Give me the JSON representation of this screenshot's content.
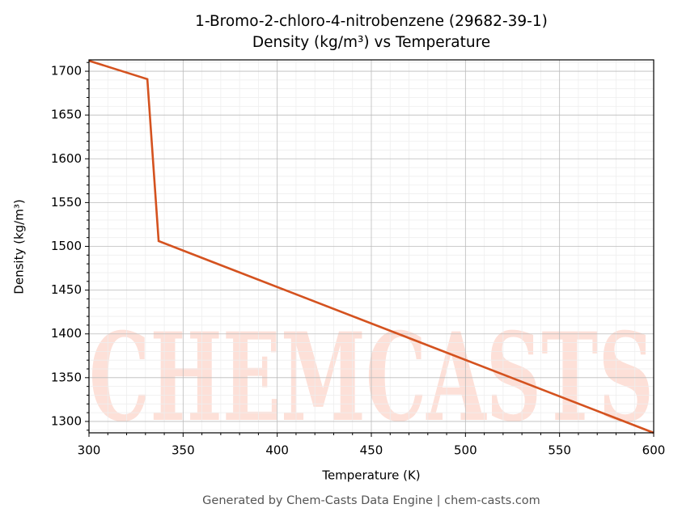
{
  "chart_data": {
    "type": "line",
    "title": "1-Bromo-2-chloro-4-nitrobenzene (29682-39-1)",
    "subtitle": "Density (kg/m³) vs Temperature",
    "x_label": "Temperature (K)",
    "y_label": "Density (kg/m³)",
    "footer": "Generated by Chem-Casts Data Engine | chem-casts.com",
    "watermark": "CHEMCASTS",
    "x": [
      300,
      331,
      337,
      600
    ],
    "series": [
      {
        "name": "Density",
        "color": "#d4521f",
        "values": [
          1712,
          1691,
          1506,
          1287
        ]
      }
    ],
    "xlim": [
      300,
      600
    ],
    "xticks": [
      300,
      350,
      400,
      450,
      500,
      550,
      600
    ],
    "ylim": [
      1287,
      1713
    ],
    "yticks": [
      1300,
      1350,
      1400,
      1450,
      1500,
      1550,
      1600,
      1650,
      1700
    ],
    "grid": true
  }
}
